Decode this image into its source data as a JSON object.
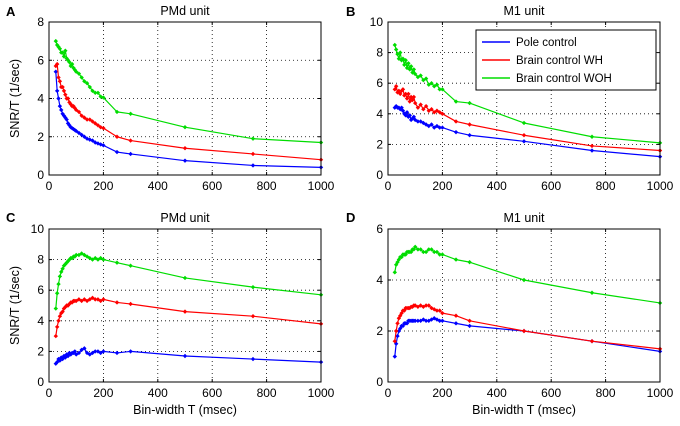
{
  "figure": {
    "width": 680,
    "height": 426
  },
  "legend": {
    "entries": [
      {
        "label": "Pole control",
        "color": "#0000ff"
      },
      {
        "label": "Brain control WH",
        "color": "#ff0000"
      },
      {
        "label": "Brain control WOH",
        "color": "#00dd00"
      }
    ]
  },
  "chart_data": [
    {
      "letter": "A",
      "title": "PMd unit",
      "type": "line",
      "xlabel": "",
      "ylabel": "SNR/T (1/sec)",
      "xlim": [
        0,
        1000
      ],
      "ylim": [
        0,
        8
      ],
      "xticks": [
        0,
        200,
        400,
        600,
        800,
        1000
      ],
      "yticks": [
        0,
        2,
        4,
        6,
        8
      ],
      "grid": true,
      "legend": false,
      "series": [
        {
          "name": "Pole control",
          "color": "#0000ff",
          "x": [
            25,
            30,
            35,
            40,
            45,
            50,
            55,
            60,
            65,
            70,
            75,
            80,
            85,
            90,
            95,
            100,
            110,
            120,
            130,
            140,
            150,
            160,
            170,
            180,
            190,
            200,
            250,
            300,
            500,
            750,
            1000
          ],
          "y": [
            5.4,
            4.4,
            4.0,
            3.6,
            3.4,
            3.2,
            3.1,
            3.0,
            2.9,
            2.7,
            2.6,
            2.5,
            2.45,
            2.4,
            2.35,
            2.3,
            2.2,
            2.1,
            2.0,
            1.9,
            1.85,
            1.8,
            1.7,
            1.65,
            1.6,
            1.55,
            1.2,
            1.1,
            0.75,
            0.5,
            0.4
          ]
        },
        {
          "name": "Brain control WH",
          "color": "#ff0000",
          "x": [
            25,
            30,
            35,
            40,
            45,
            50,
            55,
            60,
            65,
            70,
            75,
            80,
            85,
            90,
            95,
            100,
            110,
            120,
            130,
            140,
            150,
            160,
            170,
            180,
            190,
            200,
            250,
            300,
            500,
            750,
            1000
          ],
          "y": [
            5.7,
            5.8,
            5.1,
            4.9,
            4.6,
            4.6,
            4.4,
            4.2,
            4.0,
            4.0,
            3.8,
            3.7,
            3.6,
            3.6,
            3.5,
            3.4,
            3.3,
            3.1,
            3.0,
            2.9,
            2.9,
            2.8,
            2.7,
            2.6,
            2.5,
            2.45,
            2.0,
            1.8,
            1.4,
            1.1,
            0.8
          ]
        },
        {
          "name": "Brain control WOH",
          "color": "#00dd00",
          "x": [
            25,
            30,
            35,
            40,
            45,
            50,
            55,
            60,
            65,
            70,
            75,
            80,
            85,
            90,
            95,
            100,
            110,
            120,
            130,
            140,
            150,
            160,
            170,
            180,
            190,
            200,
            250,
            300,
            500,
            750,
            1000
          ],
          "y": [
            7.0,
            6.8,
            6.7,
            6.6,
            6.4,
            6.4,
            6.2,
            6.5,
            6.1,
            6.0,
            5.9,
            5.7,
            5.8,
            5.6,
            5.5,
            5.4,
            5.3,
            5.1,
            4.9,
            4.8,
            4.6,
            4.4,
            4.3,
            4.3,
            4.1,
            4.05,
            3.3,
            3.2,
            2.5,
            1.9,
            1.7
          ]
        }
      ]
    },
    {
      "letter": "B",
      "title": "M1 unit",
      "type": "line",
      "xlabel": "",
      "ylabel": "",
      "xlim": [
        0,
        1000
      ],
      "ylim": [
        0,
        10
      ],
      "xticks": [
        0,
        200,
        400,
        600,
        800,
        1000
      ],
      "yticks": [
        0,
        2,
        4,
        6,
        8,
        10
      ],
      "grid": true,
      "legend": true,
      "legend_position": "top-right",
      "series": [
        {
          "name": "Pole control",
          "color": "#0000ff",
          "x": [
            25,
            30,
            35,
            40,
            45,
            50,
            55,
            60,
            65,
            70,
            75,
            80,
            85,
            90,
            95,
            100,
            110,
            120,
            130,
            140,
            150,
            160,
            170,
            180,
            190,
            200,
            250,
            300,
            500,
            750,
            1000
          ],
          "y": [
            4.4,
            4.5,
            4.4,
            4.4,
            4.3,
            4.4,
            4.2,
            4.0,
            3.9,
            4.1,
            3.8,
            3.9,
            3.6,
            3.7,
            3.8,
            3.6,
            3.5,
            3.5,
            3.4,
            3.3,
            3.2,
            3.3,
            3.1,
            3.2,
            3.1,
            3.1,
            2.8,
            2.6,
            2.2,
            1.6,
            1.2
          ]
        },
        {
          "name": "Brain control WH",
          "color": "#ff0000",
          "x": [
            25,
            30,
            35,
            40,
            45,
            50,
            55,
            60,
            65,
            70,
            75,
            80,
            85,
            90,
            95,
            100,
            110,
            120,
            130,
            140,
            150,
            160,
            170,
            180,
            190,
            200,
            250,
            300,
            500,
            750,
            1000
          ],
          "y": [
            5.6,
            5.8,
            5.4,
            5.5,
            5.3,
            5.5,
            5.6,
            5.2,
            5.3,
            5.0,
            5.3,
            4.8,
            5.1,
            4.9,
            5.1,
            4.7,
            4.4,
            4.6,
            4.3,
            4.5,
            4.2,
            4.3,
            4.1,
            4.2,
            4.1,
            4.0,
            3.5,
            3.3,
            2.6,
            1.9,
            1.6
          ]
        },
        {
          "name": "Brain control WOH",
          "color": "#00dd00",
          "x": [
            25,
            30,
            35,
            40,
            45,
            50,
            55,
            60,
            65,
            70,
            75,
            80,
            85,
            90,
            95,
            100,
            110,
            120,
            130,
            140,
            150,
            160,
            170,
            180,
            190,
            200,
            250,
            300,
            500,
            750,
            1000
          ],
          "y": [
            8.5,
            8.2,
            7.9,
            7.6,
            8.0,
            7.5,
            7.6,
            7.2,
            7.5,
            7.0,
            7.3,
            6.9,
            7.1,
            6.7,
            6.9,
            6.6,
            6.4,
            6.5,
            6.2,
            6.3,
            5.9,
            6.0,
            5.8,
            5.9,
            5.6,
            5.6,
            4.8,
            4.7,
            3.4,
            2.5,
            2.1
          ]
        }
      ]
    },
    {
      "letter": "C",
      "title": "PMd unit",
      "type": "line",
      "xlabel": "Bin-width T (msec)",
      "ylabel": "SNR/T (1/sec)",
      "xlim": [
        0,
        1000
      ],
      "ylim": [
        0,
        10
      ],
      "xticks": [
        0,
        200,
        400,
        600,
        800,
        1000
      ],
      "yticks": [
        0,
        2,
        4,
        6,
        8,
        10
      ],
      "grid": true,
      "legend": false,
      "series": [
        {
          "name": "Pole control",
          "color": "#0000ff",
          "x": [
            25,
            30,
            35,
            40,
            45,
            50,
            55,
            60,
            65,
            70,
            75,
            80,
            85,
            90,
            95,
            100,
            110,
            120,
            130,
            140,
            150,
            160,
            170,
            180,
            190,
            200,
            250,
            300,
            500,
            750,
            1000
          ],
          "y": [
            1.2,
            1.3,
            1.5,
            1.4,
            1.6,
            1.5,
            1.7,
            1.6,
            1.8,
            1.7,
            1.9,
            1.8,
            1.9,
            1.9,
            2.0,
            1.8,
            1.9,
            2.1,
            2.2,
            1.9,
            1.8,
            1.9,
            2.0,
            2.0,
            1.9,
            2.0,
            1.9,
            2.0,
            1.7,
            1.5,
            1.3
          ]
        },
        {
          "name": "Brain control WH",
          "color": "#ff0000",
          "x": [
            25,
            30,
            35,
            40,
            45,
            50,
            55,
            60,
            65,
            70,
            75,
            80,
            85,
            90,
            95,
            100,
            110,
            120,
            130,
            140,
            150,
            160,
            170,
            180,
            190,
            200,
            250,
            300,
            500,
            750,
            1000
          ],
          "y": [
            3.0,
            3.6,
            4.0,
            4.3,
            4.5,
            4.6,
            4.8,
            4.9,
            5.0,
            5.0,
            5.1,
            5.2,
            5.2,
            5.3,
            5.3,
            5.3,
            5.4,
            5.3,
            5.4,
            5.3,
            5.4,
            5.5,
            5.4,
            5.4,
            5.3,
            5.4,
            5.2,
            5.1,
            4.6,
            4.3,
            3.8
          ]
        },
        {
          "name": "Brain control WOH",
          "color": "#00dd00",
          "x": [
            25,
            30,
            35,
            40,
            45,
            50,
            55,
            60,
            65,
            70,
            75,
            80,
            85,
            90,
            95,
            100,
            110,
            120,
            130,
            140,
            150,
            160,
            170,
            180,
            190,
            200,
            250,
            300,
            500,
            750,
            1000
          ],
          "y": [
            4.8,
            5.8,
            6.4,
            6.9,
            7.2,
            7.4,
            7.6,
            7.7,
            7.8,
            7.9,
            8.0,
            8.1,
            8.1,
            8.2,
            8.2,
            8.3,
            8.3,
            8.4,
            8.3,
            8.2,
            8.1,
            8.0,
            8.1,
            8.0,
            8.1,
            8.0,
            7.8,
            7.6,
            6.8,
            6.2,
            5.7
          ]
        }
      ]
    },
    {
      "letter": "D",
      "title": "M1 unit",
      "type": "line",
      "xlabel": "Bin-width T (msec)",
      "ylabel": "",
      "xlim": [
        0,
        1000
      ],
      "ylim": [
        0,
        6
      ],
      "xticks": [
        0,
        200,
        400,
        600,
        800,
        1000
      ],
      "yticks": [
        0,
        2,
        4,
        6
      ],
      "grid": true,
      "legend": false,
      "series": [
        {
          "name": "Pole control",
          "color": "#0000ff",
          "x": [
            25,
            30,
            35,
            40,
            45,
            50,
            55,
            60,
            65,
            70,
            75,
            80,
            85,
            90,
            95,
            100,
            110,
            120,
            130,
            140,
            150,
            160,
            170,
            180,
            190,
            200,
            250,
            300,
            500,
            750,
            1000
          ],
          "y": [
            1.0,
            1.5,
            1.8,
            2.0,
            2.1,
            2.2,
            2.2,
            2.3,
            2.3,
            2.3,
            2.4,
            2.4,
            2.4,
            2.4,
            2.4,
            2.4,
            2.4,
            2.4,
            2.45,
            2.4,
            2.4,
            2.45,
            2.5,
            2.45,
            2.4,
            2.4,
            2.3,
            2.2,
            2.0,
            1.6,
            1.2
          ]
        },
        {
          "name": "Brain control WH",
          "color": "#ff0000",
          "x": [
            25,
            30,
            35,
            40,
            45,
            50,
            55,
            60,
            65,
            70,
            75,
            80,
            85,
            90,
            95,
            100,
            110,
            120,
            130,
            140,
            150,
            160,
            170,
            180,
            190,
            200,
            250,
            300,
            500,
            750,
            1000
          ],
          "y": [
            1.6,
            2.0,
            2.3,
            2.5,
            2.6,
            2.7,
            2.8,
            2.8,
            2.9,
            2.9,
            2.9,
            2.9,
            2.95,
            2.95,
            3.0,
            3.0,
            2.95,
            3.0,
            2.95,
            3.0,
            3.0,
            2.9,
            2.85,
            2.8,
            2.8,
            2.7,
            2.6,
            2.4,
            2.0,
            1.6,
            1.3
          ]
        },
        {
          "name": "Brain control WOH",
          "color": "#00dd00",
          "x": [
            25,
            30,
            35,
            40,
            45,
            50,
            55,
            60,
            65,
            70,
            75,
            80,
            85,
            90,
            95,
            100,
            110,
            120,
            130,
            140,
            150,
            160,
            170,
            180,
            190,
            200,
            250,
            300,
            500,
            750,
            1000
          ],
          "y": [
            4.3,
            4.6,
            4.7,
            4.8,
            4.9,
            4.9,
            5.0,
            5.0,
            5.0,
            5.1,
            5.1,
            5.1,
            5.1,
            5.2,
            5.2,
            5.3,
            5.2,
            5.2,
            5.1,
            5.1,
            5.2,
            5.2,
            5.1,
            5.1,
            5.0,
            5.0,
            4.8,
            4.7,
            4.0,
            3.5,
            3.1
          ]
        }
      ]
    }
  ]
}
